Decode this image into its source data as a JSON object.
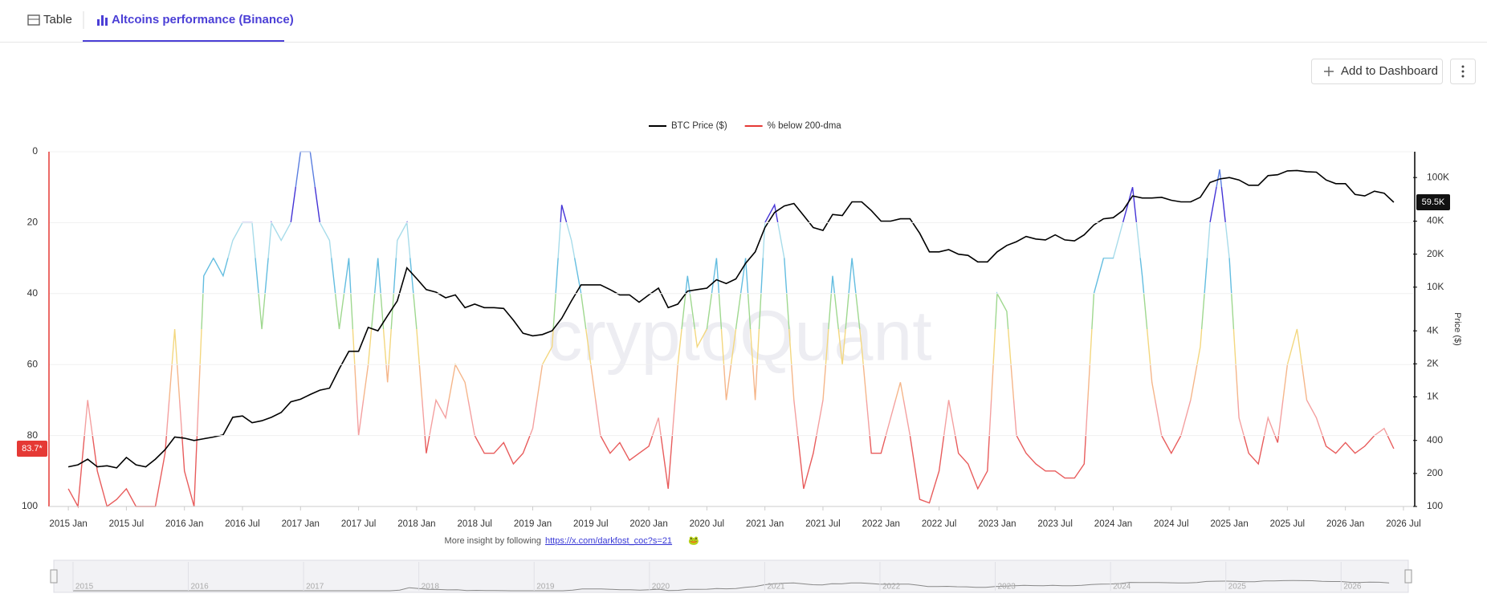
{
  "tabs": [
    "Table",
    "Altcoins performance (Binance)"
  ],
  "buttons": {
    "add": "Add to Dashboard"
  },
  "footer": {
    "text": "More insight by following",
    "link": "https://x.com/darkfost_coc?s=21",
    "emoji": "🐸"
  },
  "navigator": {
    "labels": [
      "2015",
      "2016",
      "2017",
      "2018",
      "2019",
      "2020",
      "2021",
      "2022",
      "2023",
      "2024",
      "2025",
      "2026"
    ]
  },
  "chart_data": {
    "type": "line",
    "watermark": "cryptoQuant",
    "x": [
      "2015-01",
      "2015-02",
      "2015-03",
      "2015-04",
      "2015-05",
      "2015-06",
      "2015-07",
      "2015-08",
      "2015-09",
      "2015-10",
      "2015-11",
      "2015-12",
      "2016-01",
      "2016-02",
      "2016-03",
      "2016-04",
      "2016-05",
      "2016-06",
      "2016-07",
      "2016-08",
      "2016-09",
      "2016-10",
      "2016-11",
      "2016-12",
      "2017-01",
      "2017-02",
      "2017-03",
      "2017-04",
      "2017-05",
      "2017-06",
      "2017-07",
      "2017-08",
      "2017-09",
      "2017-10",
      "2017-11",
      "2017-12",
      "2018-01",
      "2018-02",
      "2018-03",
      "2018-04",
      "2018-05",
      "2018-06",
      "2018-07",
      "2018-08",
      "2018-09",
      "2018-10",
      "2018-11",
      "2018-12",
      "2019-01",
      "2019-02",
      "2019-03",
      "2019-04",
      "2019-05",
      "2019-06",
      "2019-07",
      "2019-08",
      "2019-09",
      "2019-10",
      "2019-11",
      "2019-12",
      "2020-01",
      "2020-02",
      "2020-03",
      "2020-04",
      "2020-05",
      "2020-06",
      "2020-07",
      "2020-08",
      "2020-09",
      "2020-10",
      "2020-11",
      "2020-12",
      "2021-01",
      "2021-02",
      "2021-03",
      "2021-04",
      "2021-05",
      "2021-06",
      "2021-07",
      "2021-08",
      "2021-09",
      "2021-10",
      "2021-11",
      "2021-12",
      "2022-01",
      "2022-02",
      "2022-03",
      "2022-04",
      "2022-05",
      "2022-06",
      "2022-07",
      "2022-08",
      "2022-09",
      "2022-10",
      "2022-11",
      "2022-12",
      "2023-01",
      "2023-02",
      "2023-03",
      "2023-04",
      "2023-05",
      "2023-06",
      "2023-07",
      "2023-08",
      "2023-09",
      "2023-10",
      "2023-11",
      "2023-12",
      "2024-01",
      "2024-02",
      "2024-03",
      "2024-04",
      "2024-05",
      "2024-06",
      "2024-07",
      "2024-08",
      "2024-09",
      "2024-10",
      "2024-11",
      "2024-12",
      "2025-01",
      "2025-02",
      "2025-03",
      "2025-04",
      "2025-05",
      "2025-06",
      "2025-07",
      "2025-08",
      "2025-09",
      "2025-10",
      "2025-11",
      "2025-12",
      "2026-01",
      "2026-02",
      "2026-03",
      "2026-04",
      "2026-05",
      "2026-06"
    ],
    "xlim": [
      "2014-11",
      "2026-08"
    ],
    "xticks": [
      {
        "value": "2015-01",
        "label": "2015 Jan"
      },
      {
        "value": "2015-07",
        "label": "2015 Jul"
      },
      {
        "value": "2016-01",
        "label": "2016 Jan"
      },
      {
        "value": "2016-07",
        "label": "2016 Jul"
      },
      {
        "value": "2017-01",
        "label": "2017 Jan"
      },
      {
        "value": "2017-07",
        "label": "2017 Jul"
      },
      {
        "value": "2018-01",
        "label": "2018 Jan"
      },
      {
        "value": "2018-07",
        "label": "2018 Jul"
      },
      {
        "value": "2019-01",
        "label": "2019 Jan"
      },
      {
        "value": "2019-07",
        "label": "2019 Jul"
      },
      {
        "value": "2020-01",
        "label": "2020 Jan"
      },
      {
        "value": "2020-07",
        "label": "2020 Jul"
      },
      {
        "value": "2021-01",
        "label": "2021 Jan"
      },
      {
        "value": "2021-07",
        "label": "2021 Jul"
      },
      {
        "value": "2022-01",
        "label": "2022 Jan"
      },
      {
        "value": "2022-07",
        "label": "2022 Jul"
      },
      {
        "value": "2023-01",
        "label": "2023 Jan"
      },
      {
        "value": "2023-07",
        "label": "2023 Jul"
      },
      {
        "value": "2024-01",
        "label": "2024 Jan"
      },
      {
        "value": "2024-07",
        "label": "2024 Jul"
      },
      {
        "value": "2025-01",
        "label": "2025 Jan"
      },
      {
        "value": "2025-07",
        "label": "2025 Jul"
      },
      {
        "value": "2026-01",
        "label": "2026 Jan"
      },
      {
        "value": "2026-07",
        "label": "2026 Jul"
      }
    ],
    "ylim": [
      0,
      100
    ],
    "y_inverted": true,
    "yticks": [
      0,
      20,
      40,
      60,
      80,
      100
    ],
    "y2lim": [
      100,
      172000
    ],
    "y2_log": true,
    "y2label": "Price ($)",
    "y2ticks": [
      100,
      200,
      400,
      {
        "value": 1000,
        "label": "1K"
      },
      {
        "value": 2000,
        "label": "2K"
      },
      {
        "value": 4000,
        "label": "4K"
      },
      {
        "value": 10000,
        "label": "10K"
      },
      {
        "value": 20000,
        "label": "20K"
      },
      {
        "value": 40000,
        "label": "40K"
      },
      {
        "value": 100000,
        "label": "100K"
      }
    ],
    "grid": true,
    "legend": "top",
    "series": [
      {
        "name": "BTC Price ($)",
        "color": "#000000",
        "axis": "y2",
        "end_label": "59.5K",
        "values": [
          230,
          240,
          270,
          230,
          235,
          225,
          280,
          240,
          230,
          270,
          330,
          430,
          420,
          400,
          415,
          430,
          450,
          650,
          670,
          580,
          605,
          650,
          720,
          900,
          950,
          1050,
          1150,
          1200,
          1800,
          2600,
          2600,
          4300,
          4000,
          5500,
          7500,
          15000,
          12000,
          9500,
          9000,
          8000,
          8500,
          6500,
          7000,
          6500,
          6500,
          6400,
          5000,
          3800,
          3600,
          3700,
          4000,
          5200,
          7500,
          10500,
          10500,
          10500,
          9500,
          8500,
          8500,
          7300,
          8500,
          9800,
          6500,
          7000,
          9200,
          9500,
          9800,
          11700,
          10800,
          11900,
          16500,
          21000,
          35000,
          48000,
          55000,
          58000,
          45000,
          35000,
          33000,
          46000,
          45000,
          60000,
          60000,
          50000,
          40000,
          40000,
          42000,
          42000,
          31000,
          21000,
          21000,
          22000,
          20000,
          19500,
          17000,
          17000,
          21000,
          24000,
          26000,
          29000,
          27500,
          27000,
          30000,
          27000,
          26500,
          30000,
          37000,
          42000,
          43000,
          50000,
          68000,
          65000,
          65000,
          66000,
          62000,
          60000,
          60000,
          66000,
          90000,
          97000,
          100000,
          95000,
          85000,
          85000,
          104000,
          106000,
          115000,
          116000,
          113000,
          112000,
          95000,
          88000,
          88000,
          70000,
          68000,
          75000,
          72000,
          59500
        ]
      },
      {
        "name": "% below 200-dma",
        "color": "#e53935",
        "end_label": "83.7*",
        "values": [
          95,
          100,
          70,
          90,
          100,
          98,
          95,
          100,
          100,
          100,
          85,
          50,
          90,
          100,
          35,
          30,
          35,
          25,
          20,
          20,
          50,
          20,
          25,
          20,
          0,
          0,
          20,
          25,
          50,
          30,
          80,
          60,
          30,
          65,
          25,
          20,
          50,
          85,
          70,
          75,
          60,
          65,
          80,
          85,
          85,
          82,
          88,
          85,
          78,
          60,
          55,
          15,
          25,
          40,
          60,
          80,
          85,
          82,
          87,
          85,
          83,
          75,
          95,
          60,
          35,
          55,
          50,
          30,
          70,
          50,
          30,
          70,
          20,
          15,
          30,
          70,
          95,
          85,
          70,
          35,
          60,
          30,
          55,
          85,
          85,
          75,
          65,
          80,
          98,
          99,
          90,
          70,
          85,
          88,
          95,
          90,
          40,
          45,
          80,
          85,
          88,
          90,
          90,
          92,
          92,
          88,
          40,
          30,
          30,
          20,
          10,
          35,
          65,
          80,
          85,
          80,
          70,
          55,
          20,
          5,
          30,
          75,
          85,
          88,
          75,
          82,
          60,
          50,
          70,
          75,
          83,
          85,
          82,
          85,
          83,
          80,
          78,
          83.7
        ]
      }
    ]
  }
}
